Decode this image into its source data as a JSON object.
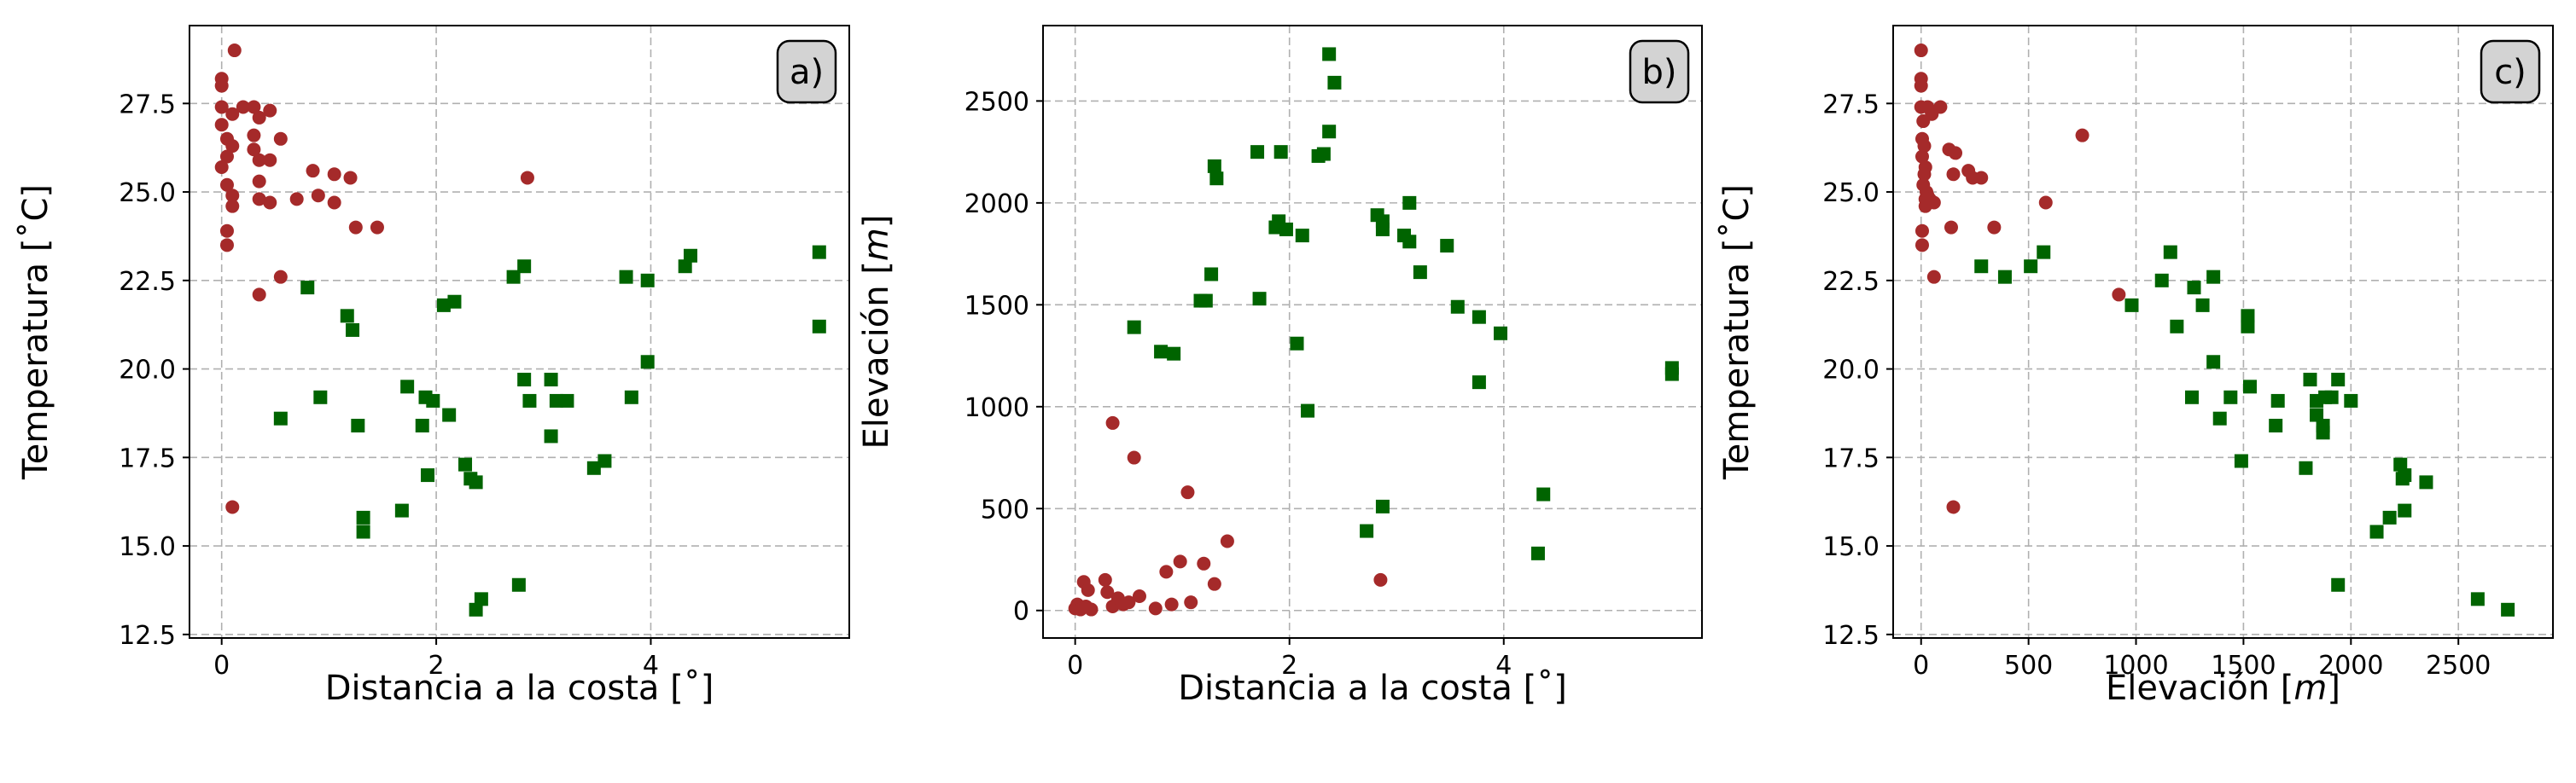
{
  "colors": {
    "coastal": "#a52a2a",
    "inland": "#006400"
  },
  "chart_data": [
    {
      "type": "scatter",
      "panel_label": "a)",
      "xlabel": "Distancia a la costa [˚]",
      "ylabel": "Temperatura [˚C]",
      "xlim": [
        -0.3,
        5.85
      ],
      "ylim": [
        12.4,
        29.7
      ],
      "xticks": [
        0,
        2,
        4
      ],
      "yticks": [
        12.5,
        15.0,
        17.5,
        20.0,
        22.5,
        25.0,
        27.5
      ],
      "xtick_labels": [
        "0",
        "2",
        "4"
      ],
      "ytick_labels": [
        "12.5",
        "15.0",
        "17.5",
        "20.0",
        "22.5",
        "25.0",
        "27.5"
      ],
      "grid": true,
      "series": [
        {
          "marker": "circle",
          "color": "#a52a2a",
          "points": [
            [
              0.0,
              28.2
            ],
            [
              0.0,
              28.0
            ],
            [
              0.12,
              29.0
            ],
            [
              0.0,
              27.4
            ],
            [
              0.0,
              26.9
            ],
            [
              0.05,
              26.5
            ],
            [
              0.1,
              26.3
            ],
            [
              0.05,
              26.0
            ],
            [
              0.0,
              25.7
            ],
            [
              0.05,
              25.2
            ],
            [
              0.1,
              24.9
            ],
            [
              0.1,
              24.6
            ],
            [
              0.05,
              23.9
            ],
            [
              0.05,
              23.5
            ],
            [
              0.2,
              27.4
            ],
            [
              0.1,
              27.2
            ],
            [
              0.3,
              27.4
            ],
            [
              0.35,
              27.1
            ],
            [
              0.45,
              27.3
            ],
            [
              0.3,
              26.6
            ],
            [
              0.55,
              26.5
            ],
            [
              0.3,
              26.2
            ],
            [
              0.35,
              25.9
            ],
            [
              0.45,
              25.9
            ],
            [
              0.35,
              25.3
            ],
            [
              0.85,
              25.6
            ],
            [
              1.05,
              25.5
            ],
            [
              1.2,
              25.4
            ],
            [
              0.9,
              24.9
            ],
            [
              0.7,
              24.8
            ],
            [
              1.05,
              24.7
            ],
            [
              0.35,
              24.8
            ],
            [
              0.45,
              24.7
            ],
            [
              1.25,
              24.0
            ],
            [
              1.45,
              24.0
            ],
            [
              0.55,
              22.6
            ],
            [
              0.35,
              22.1
            ],
            [
              2.85,
              25.4
            ],
            [
              0.1,
              16.1
            ]
          ]
        },
        {
          "marker": "square",
          "color": "#006400",
          "points": [
            [
              0.55,
              18.6
            ],
            [
              0.8,
              22.3
            ],
            [
              0.92,
              19.2
            ],
            [
              1.17,
              21.5
            ],
            [
              1.22,
              21.1
            ],
            [
              1.27,
              18.4
            ],
            [
              1.32,
              15.8
            ],
            [
              1.32,
              15.4
            ],
            [
              1.68,
              16.0
            ],
            [
              1.73,
              19.5
            ],
            [
              1.87,
              18.4
            ],
            [
              1.92,
              17.0
            ],
            [
              1.9,
              19.2
            ],
            [
              1.97,
              19.1
            ],
            [
              2.07,
              21.8
            ],
            [
              2.17,
              21.9
            ],
            [
              2.12,
              18.7
            ],
            [
              2.27,
              17.3
            ],
            [
              2.32,
              16.9
            ],
            [
              2.37,
              16.8
            ],
            [
              2.37,
              13.2
            ],
            [
              2.42,
              13.5
            ],
            [
              2.72,
              22.6
            ],
            [
              2.82,
              22.9
            ],
            [
              2.82,
              19.7
            ],
            [
              2.87,
              19.1
            ],
            [
              2.77,
              13.9
            ],
            [
              3.07,
              19.7
            ],
            [
              3.07,
              18.1
            ],
            [
              3.12,
              19.1
            ],
            [
              3.22,
              19.1
            ],
            [
              3.47,
              17.2
            ],
            [
              3.57,
              17.4
            ],
            [
              3.77,
              22.6
            ],
            [
              3.82,
              19.2
            ],
            [
              3.97,
              22.5
            ],
            [
              3.97,
              20.2
            ],
            [
              4.32,
              22.9
            ],
            [
              4.37,
              23.2
            ],
            [
              5.57,
              23.3
            ],
            [
              5.57,
              21.2
            ]
          ]
        }
      ]
    },
    {
      "type": "scatter",
      "panel_label": "b)",
      "xlabel": "Distancia a la costa [˚]",
      "ylabel": "Elevación [m]",
      "xlim": [
        -0.3,
        5.85
      ],
      "ylim": [
        -135,
        2870
      ],
      "xticks": [
        0,
        2,
        4
      ],
      "yticks": [
        0,
        500,
        1000,
        1500,
        2000,
        2500
      ],
      "xtick_labels": [
        "0",
        "2",
        "4"
      ],
      "ytick_labels": [
        "0",
        "500",
        "1000",
        "1500",
        "2000",
        "2500"
      ],
      "grid": true,
      "series": [
        {
          "marker": "circle",
          "color": "#a52a2a",
          "points": [
            [
              0.0,
              10
            ],
            [
              0.02,
              30
            ],
            [
              0.05,
              5
            ],
            [
              0.1,
              20
            ],
            [
              0.15,
              5
            ],
            [
              0.08,
              140
            ],
            [
              0.12,
              100
            ],
            [
              0.3,
              90
            ],
            [
              0.28,
              150
            ],
            [
              0.35,
              20
            ],
            [
              0.4,
              60
            ],
            [
              0.45,
              30
            ],
            [
              0.5,
              40
            ],
            [
              0.6,
              70
            ],
            [
              0.35,
              920
            ],
            [
              0.55,
              750
            ],
            [
              0.75,
              10
            ],
            [
              0.85,
              190
            ],
            [
              0.9,
              30
            ],
            [
              0.98,
              240
            ],
            [
              1.05,
              580
            ],
            [
              1.08,
              40
            ],
            [
              1.2,
              230
            ],
            [
              1.3,
              130
            ],
            [
              1.42,
              340
            ],
            [
              2.85,
              150
            ]
          ]
        },
        {
          "marker": "square",
          "color": "#006400",
          "points": [
            [
              0.55,
              1390
            ],
            [
              0.8,
              1270
            ],
            [
              0.92,
              1260
            ],
            [
              1.17,
              1520
            ],
            [
              1.22,
              1520
            ],
            [
              1.27,
              1650
            ],
            [
              1.3,
              2180
            ],
            [
              1.32,
              2120
            ],
            [
              1.7,
              2250
            ],
            [
              1.72,
              1530
            ],
            [
              1.87,
              1880
            ],
            [
              1.9,
              1910
            ],
            [
              1.92,
              2250
            ],
            [
              1.97,
              1870
            ],
            [
              2.07,
              1310
            ],
            [
              2.12,
              1840
            ],
            [
              2.17,
              980
            ],
            [
              2.27,
              2230
            ],
            [
              2.32,
              2240
            ],
            [
              2.37,
              2730
            ],
            [
              2.37,
              2350
            ],
            [
              2.42,
              2590
            ],
            [
              2.72,
              390
            ],
            [
              2.82,
              1940
            ],
            [
              2.87,
              1910
            ],
            [
              2.87,
              1870
            ],
            [
              2.87,
              510
            ],
            [
              3.07,
              1840
            ],
            [
              3.12,
              1810
            ],
            [
              3.12,
              2000
            ],
            [
              3.22,
              1660
            ],
            [
              3.47,
              1790
            ],
            [
              3.57,
              1490
            ],
            [
              3.77,
              1440
            ],
            [
              3.77,
              1120
            ],
            [
              3.97,
              1360
            ],
            [
              4.32,
              280
            ],
            [
              4.37,
              570
            ],
            [
              5.57,
              1190
            ],
            [
              5.57,
              1160
            ]
          ]
        }
      ]
    },
    {
      "type": "scatter",
      "panel_label": "c)",
      "xlabel": "Elevación [m]",
      "ylabel": "Temperatura  [˚C]",
      "xlim": [
        -130,
        2940
      ],
      "ylim": [
        12.4,
        29.7
      ],
      "xticks": [
        0,
        500,
        1000,
        1500,
        2000,
        2500
      ],
      "yticks": [
        12.5,
        15.0,
        17.5,
        20.0,
        22.5,
        25.0,
        27.5
      ],
      "xtick_labels": [
        "0",
        "500",
        "1000",
        "1500",
        "2000",
        "2500"
      ],
      "ytick_labels": [
        "12.5",
        "15.0",
        "17.5",
        "20.0",
        "22.5",
        "25.0",
        "27.5"
      ],
      "grid": true,
      "series": [
        {
          "marker": "circle",
          "color": "#a52a2a",
          "points": [
            [
              0,
              29.0
            ],
            [
              0,
              28.2
            ],
            [
              0,
              28.0
            ],
            [
              0,
              27.4
            ],
            [
              10,
              27.0
            ],
            [
              5,
              26.5
            ],
            [
              15,
              26.3
            ],
            [
              5,
              26.0
            ],
            [
              20,
              25.7
            ],
            [
              15,
              25.5
            ],
            [
              10,
              25.2
            ],
            [
              25,
              25.0
            ],
            [
              30,
              24.9
            ],
            [
              20,
              24.8
            ],
            [
              40,
              24.8
            ],
            [
              60,
              24.7
            ],
            [
              20,
              24.6
            ],
            [
              5,
              23.9
            ],
            [
              5,
              23.5
            ],
            [
              30,
              27.4
            ],
            [
              50,
              27.2
            ],
            [
              90,
              27.4
            ],
            [
              130,
              26.2
            ],
            [
              160,
              26.1
            ],
            [
              150,
              25.5
            ],
            [
              220,
              25.6
            ],
            [
              240,
              25.4
            ],
            [
              280,
              25.4
            ],
            [
              140,
              24.0
            ],
            [
              340,
              24.0
            ],
            [
              60,
              22.6
            ],
            [
              920,
              22.1
            ],
            [
              750,
              26.6
            ],
            [
              580,
              24.7
            ],
            [
              150,
              16.1
            ]
          ]
        },
        {
          "marker": "square",
          "color": "#006400",
          "points": [
            [
              280,
              22.9
            ],
            [
              390,
              22.6
            ],
            [
              510,
              22.9
            ],
            [
              570,
              23.3
            ],
            [
              980,
              21.8
            ],
            [
              1120,
              22.5
            ],
            [
              1160,
              23.3
            ],
            [
              1190,
              21.2
            ],
            [
              1260,
              19.2
            ],
            [
              1270,
              22.3
            ],
            [
              1310,
              21.8
            ],
            [
              1360,
              22.6
            ],
            [
              1360,
              20.2
            ],
            [
              1390,
              18.6
            ],
            [
              1440,
              19.2
            ],
            [
              1490,
              17.4
            ],
            [
              1520,
              21.5
            ],
            [
              1520,
              21.2
            ],
            [
              1530,
              19.5
            ],
            [
              1650,
              18.4
            ],
            [
              1660,
              19.1
            ],
            [
              1790,
              17.2
            ],
            [
              1810,
              19.7
            ],
            [
              1840,
              19.1
            ],
            [
              1840,
              18.7
            ],
            [
              1870,
              18.4
            ],
            [
              1870,
              18.2
            ],
            [
              1880,
              19.2
            ],
            [
              1910,
              19.2
            ],
            [
              1940,
              19.7
            ],
            [
              1940,
              13.9
            ],
            [
              2000,
              19.1
            ],
            [
              2120,
              15.4
            ],
            [
              2180,
              15.8
            ],
            [
              2230,
              17.3
            ],
            [
              2240,
              16.9
            ],
            [
              2250,
              17.0
            ],
            [
              2250,
              16.0
            ],
            [
              2350,
              16.8
            ],
            [
              2590,
              13.5
            ],
            [
              2730,
              13.2
            ]
          ]
        }
      ]
    }
  ]
}
